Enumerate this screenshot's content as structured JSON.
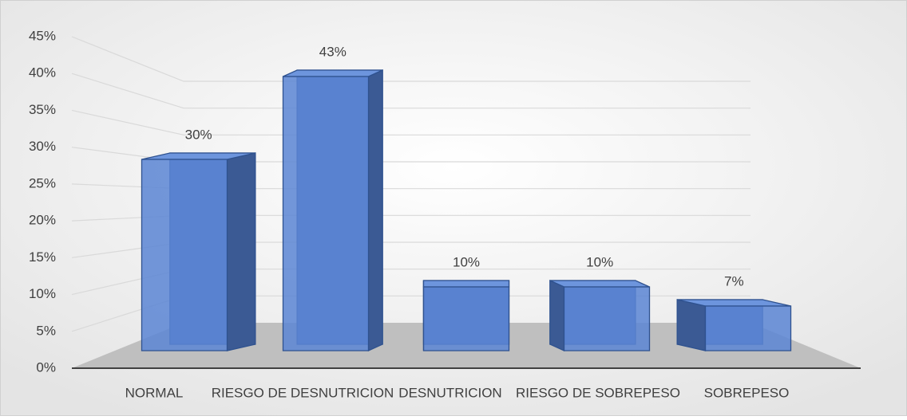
{
  "chart_data": {
    "type": "bar3d",
    "categories": [
      "NORMAL",
      "RIESGO DE DESNUTRICION",
      "DESNUTRICION",
      "RIESGO DE SOBREPESO",
      "SOBREPESO"
    ],
    "values": [
      30,
      43,
      10,
      10,
      7
    ],
    "value_labels": [
      "30%",
      "43%",
      "10%",
      "10%",
      "7%"
    ],
    "color": "#5b85d4",
    "ylim": [
      0,
      45
    ],
    "yticks": [
      {
        "value": 0,
        "label": "0%"
      },
      {
        "value": 5,
        "label": "5%"
      },
      {
        "value": 10,
        "label": "10%"
      },
      {
        "value": 15,
        "label": "15%"
      },
      {
        "value": 20,
        "label": "20%"
      },
      {
        "value": 25,
        "label": "25%"
      },
      {
        "value": 30,
        "label": "30%"
      },
      {
        "value": 35,
        "label": "35%"
      },
      {
        "value": 40,
        "label": "40%"
      },
      {
        "value": 45,
        "label": "45%"
      }
    ],
    "grid": true
  }
}
